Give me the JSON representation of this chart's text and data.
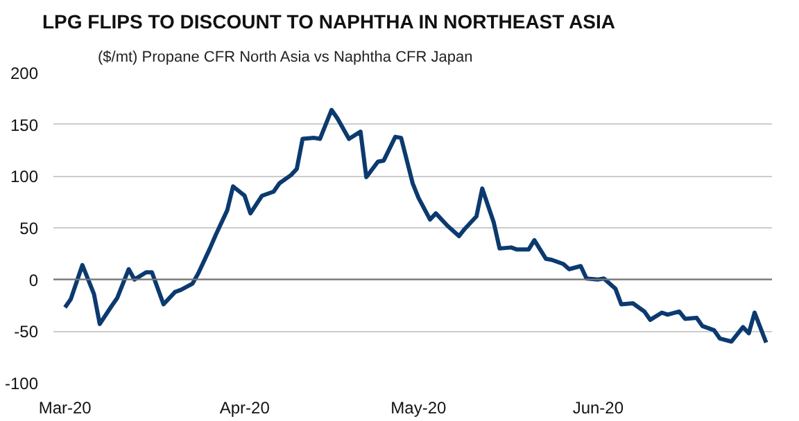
{
  "chart_data": {
    "type": "line",
    "title": "LPG FLIPS TO DISCOUNT TO NAPHTHA IN NORTHEAST ASIA",
    "subtitle": "($/mt) Propane CFR North Asia vs Naphtha CFR Japan",
    "x": [
      "2020-03-01",
      "2020-03-02",
      "2020-03-04",
      "2020-03-06",
      "2020-03-07",
      "2020-03-09",
      "2020-03-10",
      "2020-03-12",
      "2020-03-13",
      "2020-03-15",
      "2020-03-16",
      "2020-03-18",
      "2020-03-20",
      "2020-03-21",
      "2020-03-23",
      "2020-03-24",
      "2020-03-26",
      "2020-03-27",
      "2020-03-29",
      "2020-03-30",
      "2020-04-01",
      "2020-04-02",
      "2020-04-04",
      "2020-04-06",
      "2020-04-07",
      "2020-04-09",
      "2020-04-10",
      "2020-04-11",
      "2020-04-13",
      "2020-04-14",
      "2020-04-16",
      "2020-04-17",
      "2020-04-19",
      "2020-04-21",
      "2020-04-22",
      "2020-04-24",
      "2020-04-25",
      "2020-04-27",
      "2020-04-28",
      "2020-04-30",
      "2020-05-01",
      "2020-05-03",
      "2020-05-04",
      "2020-05-06",
      "2020-05-08",
      "2020-05-09",
      "2020-05-11",
      "2020-05-12",
      "2020-05-14",
      "2020-05-15",
      "2020-05-17",
      "2020-05-18",
      "2020-05-20",
      "2020-05-21",
      "2020-05-23",
      "2020-05-24",
      "2020-05-26",
      "2020-05-27",
      "2020-05-29",
      "2020-05-30",
      "2020-06-01",
      "2020-06-02",
      "2020-06-04",
      "2020-06-05",
      "2020-06-07",
      "2020-06-09",
      "2020-06-10",
      "2020-06-12",
      "2020-06-13",
      "2020-06-15",
      "2020-06-16",
      "2020-06-18",
      "2020-06-19",
      "2020-06-21",
      "2020-06-22",
      "2020-06-24",
      "2020-06-26",
      "2020-06-27",
      "2020-06-28",
      "2020-06-30"
    ],
    "series": [
      {
        "color": "#0b3a6f",
        "values": [
          -27,
          -19,
          14,
          -14,
          -43,
          -26,
          -18,
          10,
          0,
          7,
          7,
          -24,
          -12,
          -10,
          -4,
          6,
          30,
          43,
          67,
          90,
          81,
          64,
          81,
          85,
          93,
          101,
          107,
          136,
          137,
          136,
          164,
          156,
          136,
          143,
          99,
          114,
          115,
          138,
          137,
          93,
          79,
          58,
          64,
          52,
          42,
          49,
          61,
          88,
          55,
          30,
          31,
          29,
          29,
          38,
          20,
          19,
          15,
          10,
          13,
          1,
          0,
          1,
          -9,
          -24,
          -23,
          -31,
          -39,
          -32,
          -34,
          -31,
          -38,
          -37,
          -45,
          -49,
          -57,
          -60,
          -46,
          -52,
          -32,
          -61
        ]
      }
    ],
    "xlim": [
      "2020-02-28",
      "2020-07-01"
    ],
    "xticks": [
      {
        "value": "2020-03-01",
        "label": "Mar-20"
      },
      {
        "value": "2020-04-01",
        "label": "Apr-20"
      },
      {
        "value": "2020-05-01",
        "label": "May-20"
      },
      {
        "value": "2020-06-01",
        "label": "Jun-20"
      }
    ],
    "ylim": [
      -100,
      200
    ],
    "yticks": [
      -100,
      -50,
      0,
      50,
      100,
      150,
      200
    ],
    "grid": "y",
    "marker": "none",
    "line_style": "solid",
    "ref_lines": [
      {
        "axis": "y",
        "value": 0,
        "color": "#777777"
      }
    ]
  }
}
